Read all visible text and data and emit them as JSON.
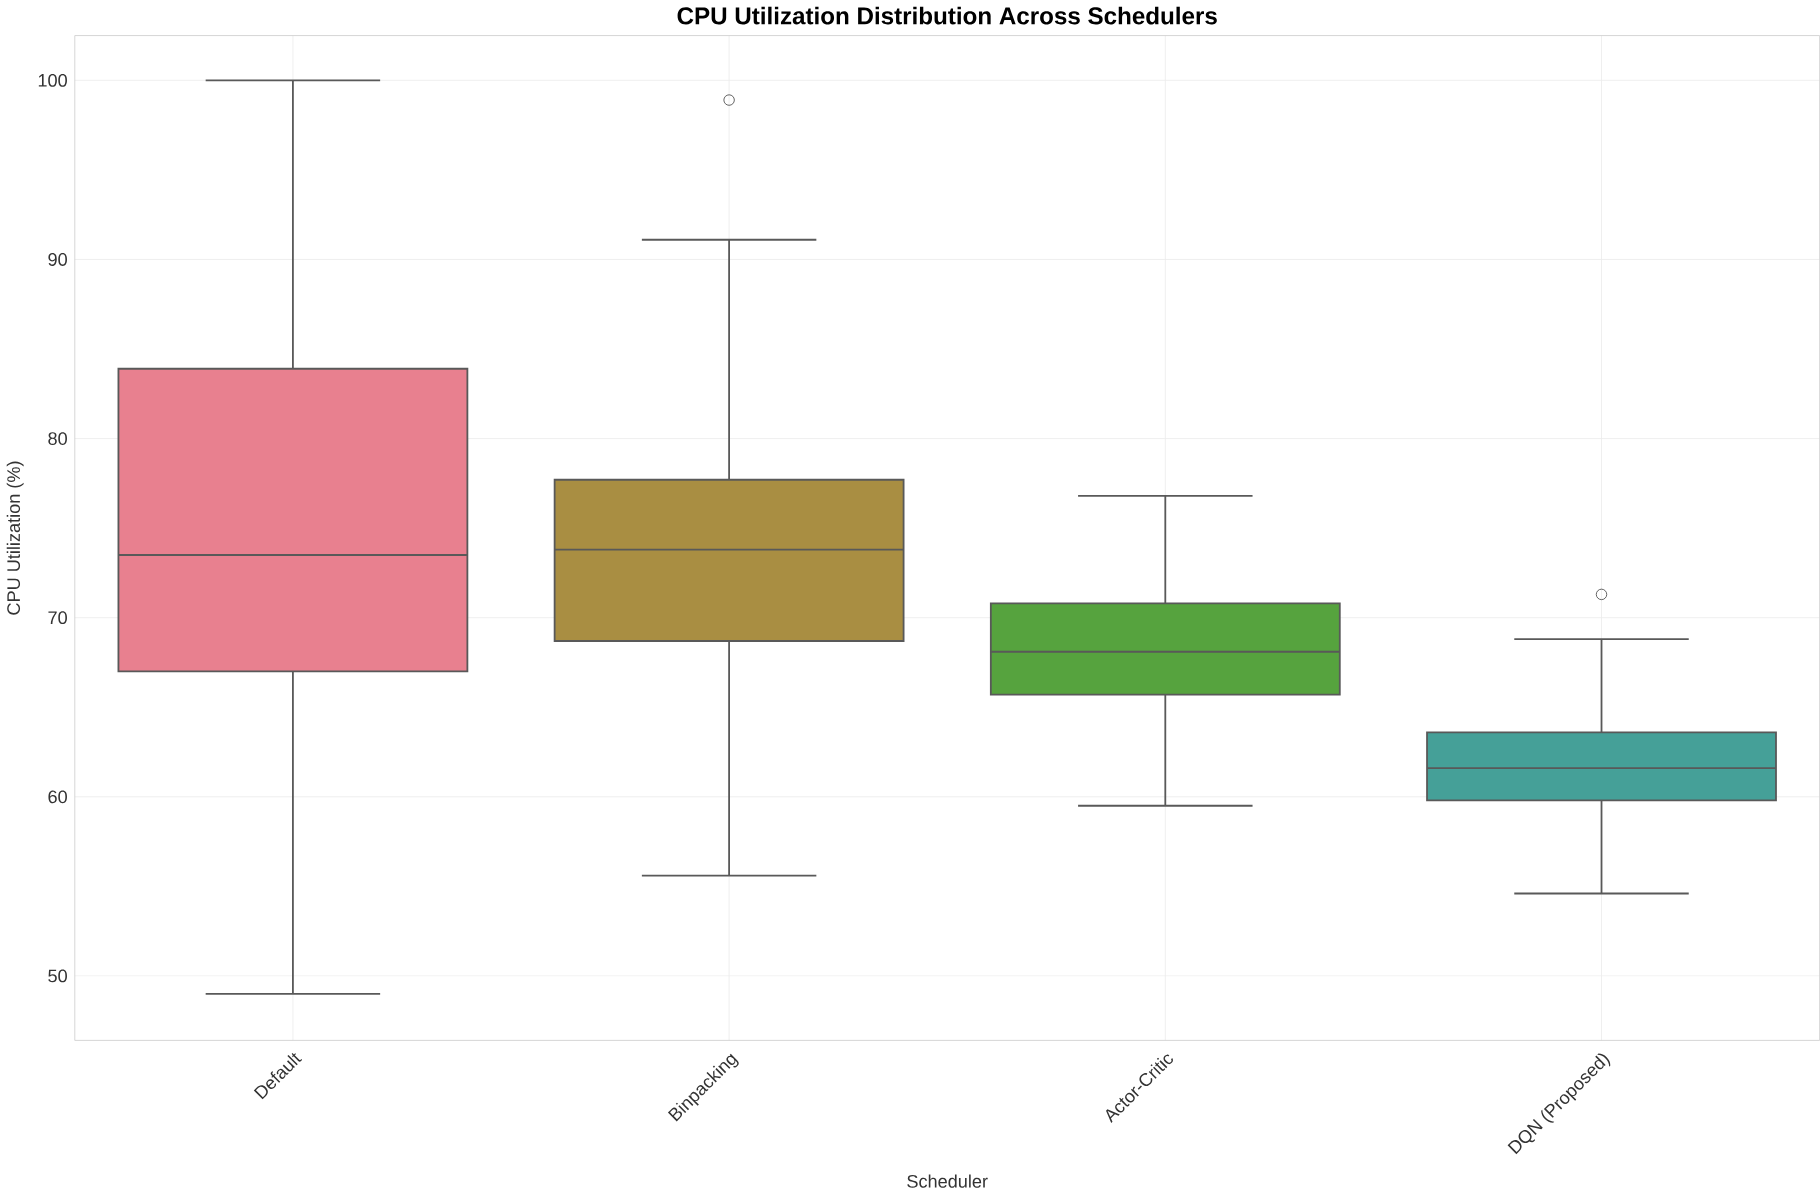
{
  "chart_data": {
    "type": "box",
    "title": "CPU Utilization Distribution Across Schedulers",
    "xlabel": "Scheduler",
    "ylabel": "CPU Utilization (%)",
    "categories": [
      "Default",
      "Binpacking",
      "Actor-Critic",
      "DQN (Proposed)"
    ],
    "colors": [
      "#e8808f",
      "#a98e42",
      "#56a33e",
      "#45a098"
    ],
    "boxes": [
      {
        "low": 49,
        "q1": 67.0,
        "median": 73.5,
        "q3": 83.9,
        "high": 100
      },
      {
        "low": 55.6,
        "q1": 68.7,
        "median": 73.8,
        "q3": 77.7,
        "high": 91.1,
        "outliers": [
          98.9
        ]
      },
      {
        "low": 59.5,
        "q1": 65.7,
        "median": 68.1,
        "q3": 70.8,
        "high": 76.8
      },
      {
        "low": 54.6,
        "q1": 59.8,
        "median": 61.6,
        "q3": 63.6,
        "high": 68.8,
        "outliers": [
          71.3
        ]
      }
    ],
    "ylim": [
      46.4,
      102.5
    ],
    "yticks": [
      50,
      60,
      70,
      80,
      90,
      100
    ],
    "grid": true
  }
}
